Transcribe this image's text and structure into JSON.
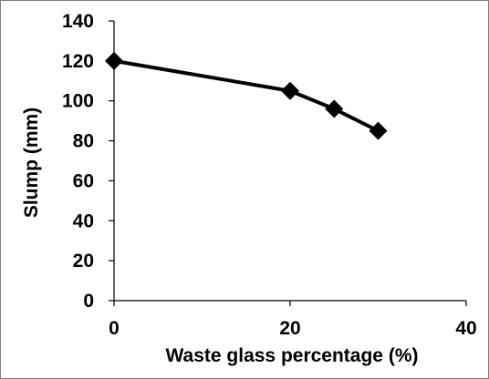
{
  "chart_data": {
    "type": "line",
    "title": "",
    "xlabel": "Waste glass percentage (%)",
    "ylabel": "Slump (mm)",
    "xlim": [
      0,
      40
    ],
    "ylim": [
      0,
      140
    ],
    "xticks": [
      0,
      20,
      40
    ],
    "yticks": [
      0,
      20,
      40,
      60,
      80,
      100,
      120,
      140
    ],
    "grid": false,
    "legend": "none",
    "series": [
      {
        "x": [
          0,
          20,
          25,
          30
        ],
        "y": [
          120,
          105,
          96,
          85
        ],
        "color": "#000000",
        "marker": "diamond"
      }
    ]
  }
}
